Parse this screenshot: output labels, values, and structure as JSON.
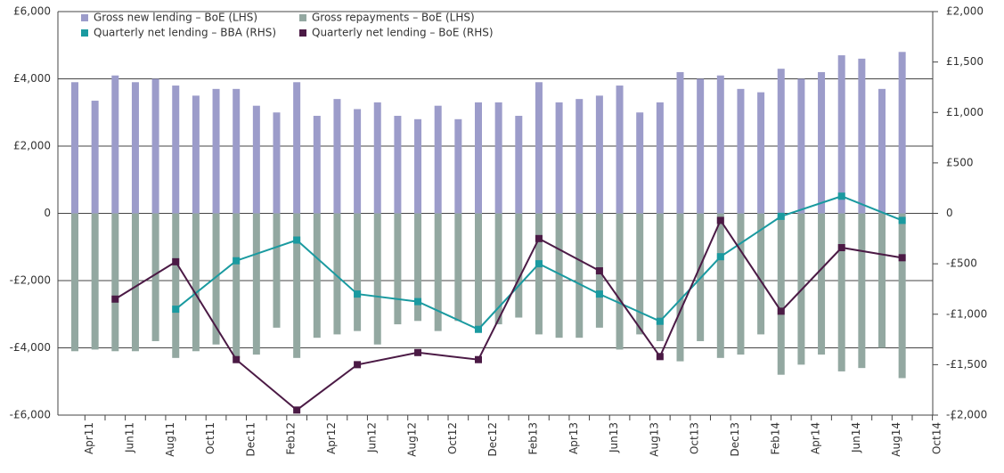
{
  "chart_data": {
    "type": "bar_line",
    "categories": [
      null,
      "Apr11",
      null,
      "Jun11",
      null,
      "Aug11",
      null,
      "Oct11",
      null,
      "Dec11",
      null,
      "Feb12",
      null,
      "Apr12",
      null,
      "Jun12",
      null,
      "Aug12",
      null,
      "Oct12",
      null,
      "Dec12",
      null,
      "Feb13",
      null,
      "Apr13",
      null,
      "Jun13",
      null,
      "Aug13",
      null,
      "Oct13",
      null,
      "Dec13",
      null,
      "Feb14",
      null,
      "Apr14",
      null,
      "Jun14",
      null,
      "Aug14",
      null,
      "Oct14"
    ],
    "series": [
      {
        "name": "Gross new lending – BoE (LHS)",
        "kind": "bar",
        "axis": "y",
        "color": "#9c9cca",
        "values": [
          3900,
          3350,
          4100,
          3900,
          4000,
          3800,
          3500,
          3700,
          3700,
          3200,
          3000,
          3900,
          2900,
          3400,
          3100,
          3300,
          2900,
          2800,
          3200,
          2800,
          3300,
          3300,
          2900,
          3900,
          3300,
          3400,
          3500,
          3800,
          3000,
          3300,
          4200,
          4000,
          4100,
          3700,
          3600,
          4300,
          4000,
          4200,
          4700,
          4600,
          3700,
          4800,
          null,
          null
        ]
      },
      {
        "name": "Gross repayments – BoE (LHS)",
        "kind": "bar",
        "axis": "y",
        "color": "#93a8a1",
        "values": [
          -4100,
          -4050,
          -4100,
          -4100,
          -3800,
          -4300,
          -4100,
          -3900,
          -4300,
          -4200,
          -3400,
          -4300,
          -3700,
          -3600,
          -3500,
          -3900,
          -3300,
          -3200,
          -3500,
          -3200,
          -3500,
          -3300,
          -3100,
          -3600,
          -3700,
          -3700,
          -3400,
          -4050,
          -3600,
          -3800,
          -4400,
          -3800,
          -4300,
          -4200,
          -3600,
          -4800,
          -4500,
          -4200,
          -4700,
          -4600,
          -4000,
          -4900,
          null,
          null
        ]
      },
      {
        "name": "Quarterly net lending – BBA (RHS)",
        "kind": "line",
        "axis": "y2",
        "color": "#1a9aa0",
        "marker": "square",
        "values": [
          null,
          null,
          null,
          null,
          null,
          -950,
          null,
          null,
          -470,
          null,
          null,
          -265,
          null,
          null,
          -800,
          null,
          null,
          -875,
          null,
          null,
          -1150,
          null,
          null,
          -500,
          null,
          null,
          -800,
          null,
          null,
          -1070,
          null,
          null,
          -430,
          null,
          null,
          -30,
          null,
          null,
          170,
          null,
          null,
          -70,
          null,
          null
        ]
      },
      {
        "name": "Quarterly net lending – BoE (RHS)",
        "kind": "line",
        "axis": "y2",
        "color": "#4b1a45",
        "marker": "square",
        "values": [
          null,
          null,
          -850,
          null,
          null,
          -480,
          null,
          null,
          -1450,
          null,
          null,
          -1950,
          null,
          null,
          -1500,
          null,
          null,
          -1380,
          null,
          null,
          -1450,
          null,
          null,
          -250,
          null,
          null,
          -570,
          null,
          null,
          -1420,
          null,
          null,
          -70,
          null,
          null,
          -970,
          null,
          null,
          -340,
          null,
          null,
          -440,
          null,
          null
        ]
      }
    ],
    "connect_gaps": true,
    "ylim": [
      -6000,
      6000
    ],
    "yticks": [
      {
        "value": 6000,
        "label": "£6,000"
      },
      {
        "value": 4000,
        "label": "£4,000"
      },
      {
        "value": 2000,
        "label": "£2,000"
      },
      0,
      {
        "value": -2000,
        "label": "-£2,000"
      },
      {
        "value": -4000,
        "label": "-£4,000"
      },
      {
        "value": -6000,
        "label": "-£6,000"
      }
    ],
    "y2lim": [
      -2000,
      2000
    ],
    "y2ticks": [
      {
        "value": 2000,
        "label": "£2,000"
      },
      {
        "value": 1500,
        "label": "£1,500"
      },
      {
        "value": 1000,
        "label": "£1,000"
      },
      {
        "value": 500,
        "label": "£500"
      },
      0,
      {
        "value": -500,
        "label": "-£500"
      },
      {
        "value": -1000,
        "label": "-£1,000"
      },
      {
        "value": -1500,
        "label": "-£1,500"
      },
      {
        "value": -2000,
        "label": "-£2,000"
      }
    ],
    "grid": true,
    "legend": "top-left"
  }
}
